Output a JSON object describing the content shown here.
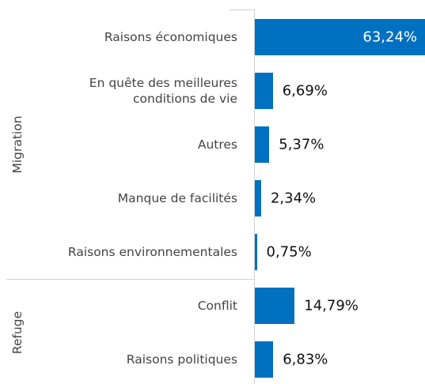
{
  "chart_data": {
    "type": "bar",
    "orientation": "horizontal",
    "color": "#0070c0",
    "groups": [
      {
        "name": "Migration",
        "categories": [
          "Raisons économiques",
          "En quête des meilleures\nconditions de vie",
          "Autres",
          "Manque de facilités",
          "Raisons environnementales"
        ],
        "values": [
          63.24,
          6.69,
          5.37,
          2.34,
          0.75
        ],
        "value_labels": [
          "63,24%",
          "6,69%",
          "5,37%",
          "2,34%",
          "0,75%"
        ]
      },
      {
        "name": "Refuge",
        "categories": [
          "Conflit",
          "Raisons politiques"
        ],
        "values": [
          14.79,
          6.83
        ],
        "value_labels": [
          "14,79%",
          "6,83%"
        ]
      }
    ]
  }
}
